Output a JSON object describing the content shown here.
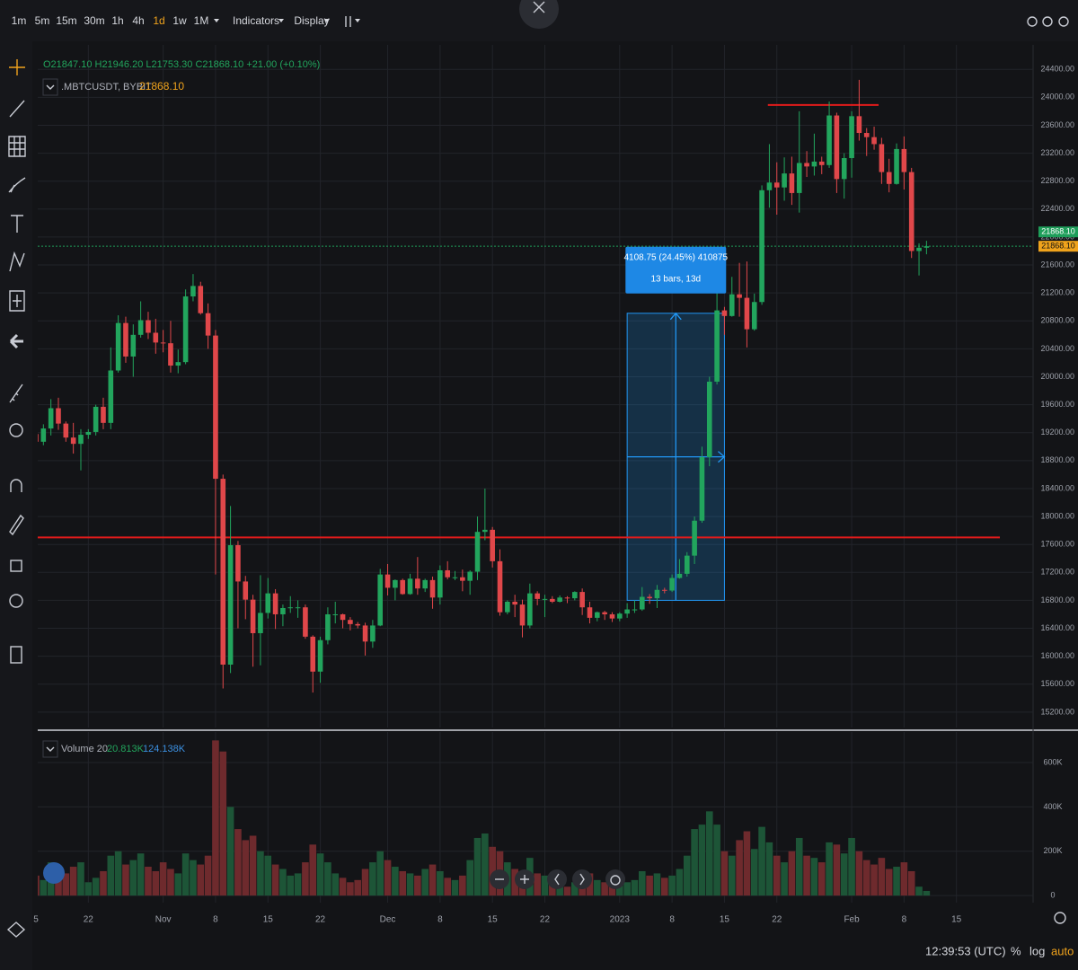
{
  "toolbar": {
    "intervals": [
      "1m",
      "5m",
      "15m",
      "30m",
      "1h",
      "4h",
      "1d",
      "1w",
      "1M"
    ],
    "active": "1d",
    "indicators": "Indicators",
    "display": "Display"
  },
  "chart_data": {
    "type": "candlestick",
    "symbol": ".MBTCUSDT, BYBIT",
    "last": "21868.10",
    "ohlc_header": [
      "O21847.10",
      "H21946.20",
      "L21753.30",
      "C21868.10",
      "+21.00 (+0.10%)"
    ],
    "xlim": [
      0,
      133
    ],
    "xticks": [
      {
        "value": 0,
        "label": "5"
      },
      {
        "value": 7,
        "label": "22"
      },
      {
        "value": 17,
        "label": "Nov"
      },
      {
        "value": 24,
        "label": "8"
      },
      {
        "value": 31,
        "label": "15"
      },
      {
        "value": 38,
        "label": "22"
      },
      {
        "value": 47,
        "label": "Dec"
      },
      {
        "value": 54,
        "label": "8"
      },
      {
        "value": 61,
        "label": "15"
      },
      {
        "value": 68,
        "label": "22"
      },
      {
        "value": 78,
        "label": "2023"
      },
      {
        "value": 85,
        "label": "8"
      },
      {
        "value": 92,
        "label": "15"
      },
      {
        "value": 99,
        "label": "22"
      },
      {
        "value": 109,
        "label": "Feb"
      },
      {
        "value": 116,
        "label": "8"
      },
      {
        "value": 123,
        "label": "15"
      }
    ],
    "ylim": [
      14980,
      24750
    ],
    "yticks": [
      {
        "value": 15200,
        "label": "15200.00"
      },
      {
        "value": 15600,
        "label": "15600.00"
      },
      {
        "value": 16000,
        "label": "16000.00"
      },
      {
        "value": 16400,
        "label": "16400.00"
      },
      {
        "value": 16800,
        "label": "16800.00"
      },
      {
        "value": 17200,
        "label": "17200.00"
      },
      {
        "value": 17600,
        "label": "17600.00"
      },
      {
        "value": 18000,
        "label": "18000.00"
      },
      {
        "value": 18400,
        "label": "18400.00"
      },
      {
        "value": 18800,
        "label": "18800.00"
      },
      {
        "value": 19200,
        "label": "19200.00"
      },
      {
        "value": 19600,
        "label": "19600.00"
      },
      {
        "value": 20000,
        "label": "20000.00"
      },
      {
        "value": 20400,
        "label": "20400.00"
      },
      {
        "value": 20800,
        "label": "20800.00"
      },
      {
        "value": 21200,
        "label": "21200.00"
      },
      {
        "value": 21600,
        "label": "21600.00"
      },
      {
        "value": 22000,
        "label": "22000.00"
      },
      {
        "value": 22400,
        "label": "22400.00"
      },
      {
        "value": 22800,
        "label": "22800.00"
      },
      {
        "value": 23200,
        "label": "23200.00"
      },
      {
        "value": 23600,
        "label": "23600.00"
      },
      {
        "value": 24000,
        "label": "24000.00"
      },
      {
        "value": 24400,
        "label": "24400.00"
      }
    ],
    "up_color": "#22a55d",
    "down_color": "#e0474a",
    "ohlc": [
      [
        19180,
        19230,
        18990,
        19070
      ],
      [
        19070,
        19320,
        19020,
        19260
      ],
      [
        19260,
        19680,
        19160,
        19550
      ],
      [
        19550,
        19700,
        19240,
        19330
      ],
      [
        19330,
        19360,
        19070,
        19130
      ],
      [
        19130,
        19340,
        18900,
        19040
      ],
      [
        19040,
        19250,
        18660,
        19170
      ],
      [
        19170,
        19250,
        19110,
        19210
      ],
      [
        19210,
        19600,
        19160,
        19570
      ],
      [
        19570,
        19700,
        19250,
        19340
      ],
      [
        19340,
        20420,
        19250,
        20090
      ],
      [
        20090,
        20880,
        20060,
        20770
      ],
      [
        20770,
        20860,
        20200,
        20290
      ],
      [
        20290,
        20750,
        20000,
        20600
      ],
      [
        20600,
        21080,
        20560,
        20810
      ],
      [
        20810,
        20930,
        20540,
        20630
      ],
      [
        20630,
        20830,
        20330,
        20490
      ],
      [
        20490,
        20670,
        20350,
        20480
      ],
      [
        20480,
        20800,
        20060,
        20160
      ],
      [
        20160,
        20390,
        20050,
        20210
      ],
      [
        20210,
        21250,
        20180,
        21150
      ],
      [
        21150,
        21470,
        21080,
        21300
      ],
      [
        21300,
        21360,
        20890,
        20910
      ],
      [
        20910,
        21050,
        20400,
        20590
      ],
      [
        20590,
        20670,
        17170,
        18540
      ],
      [
        18540,
        18600,
        15540,
        15880
      ],
      [
        15880,
        18150,
        15760,
        17590
      ],
      [
        17590,
        17650,
        16400,
        17070
      ],
      [
        17070,
        17150,
        16530,
        16810
      ],
      [
        16810,
        16880,
        15850,
        16330
      ],
      [
        16330,
        17160,
        15870,
        16620
      ],
      [
        16620,
        17120,
        16540,
        16900
      ],
      [
        16900,
        16960,
        16390,
        16600
      ],
      [
        16600,
        16740,
        16430,
        16690
      ],
      [
        16690,
        16860,
        16620,
        16700
      ],
      [
        16700,
        16800,
        16550,
        16700
      ],
      [
        16700,
        16740,
        16250,
        16280
      ],
      [
        16280,
        16300,
        15480,
        15780
      ],
      [
        15780,
        16280,
        15620,
        16230
      ],
      [
        16230,
        16700,
        16170,
        16600
      ],
      [
        16600,
        16780,
        16470,
        16600
      ],
      [
        16600,
        16610,
        16400,
        16520
      ],
      [
        16520,
        16560,
        16370,
        16460
      ],
      [
        16460,
        16490,
        16400,
        16440
      ],
      [
        16440,
        16480,
        16010,
        16210
      ],
      [
        16210,
        16520,
        16120,
        16440
      ],
      [
        16440,
        17250,
        16430,
        17170
      ],
      [
        17170,
        17320,
        16870,
        16980
      ],
      [
        16980,
        17100,
        16800,
        17090
      ],
      [
        17090,
        17110,
        16880,
        16890
      ],
      [
        16890,
        17180,
        16880,
        17110
      ],
      [
        17110,
        17420,
        16880,
        16970
      ],
      [
        16970,
        17110,
        16920,
        17090
      ],
      [
        17090,
        17140,
        16680,
        16840
      ],
      [
        16840,
        17300,
        16740,
        17230
      ],
      [
        17230,
        17360,
        17100,
        17130
      ],
      [
        17130,
        17220,
        17090,
        17130
      ],
      [
        17130,
        17240,
        16930,
        17080
      ],
      [
        17080,
        17230,
        16880,
        17210
      ],
      [
        17210,
        18000,
        17090,
        17780
      ],
      [
        17780,
        18400,
        17660,
        17810
      ],
      [
        17810,
        17850,
        17270,
        17360
      ],
      [
        17360,
        17530,
        16580,
        16630
      ],
      [
        16630,
        16800,
        16600,
        16780
      ],
      [
        16780,
        16880,
        16560,
        16740
      ],
      [
        16740,
        16810,
        16270,
        16440
      ],
      [
        16440,
        17040,
        16400,
        16900
      ],
      [
        16900,
        16930,
        16730,
        16820
      ],
      [
        16820,
        16880,
        16560,
        16820
      ],
      [
        16820,
        16860,
        16760,
        16780
      ],
      [
        16780,
        16870,
        16770,
        16840
      ],
      [
        16840,
        16860,
        16760,
        16830
      ],
      [
        16830,
        16930,
        16800,
        16920
      ],
      [
        16920,
        16970,
        16590,
        16700
      ],
      [
        16700,
        16780,
        16470,
        16550
      ],
      [
        16550,
        16640,
        16500,
        16630
      ],
      [
        16630,
        16650,
        16520,
        16600
      ],
      [
        16600,
        16630,
        16490,
        16540
      ],
      [
        16540,
        16630,
        16500,
        16610
      ],
      [
        16610,
        16760,
        16550,
        16670
      ],
      [
        16670,
        16800,
        16620,
        16670
      ],
      [
        16670,
        16990,
        16650,
        16850
      ],
      [
        16850,
        16890,
        16750,
        16830
      ],
      [
        16830,
        17020,
        16690,
        16950
      ],
      [
        16950,
        16980,
        16900,
        16940
      ],
      [
        16940,
        17170,
        16920,
        17120
      ],
      [
        17120,
        17390,
        17110,
        17180
      ],
      [
        17180,
        17490,
        17140,
        17440
      ],
      [
        17440,
        18000,
        17320,
        17940
      ],
      [
        17940,
        19000,
        17910,
        18850
      ],
      [
        18850,
        20000,
        18720,
        19930
      ],
      [
        19930,
        21250,
        19890,
        20950
      ],
      [
        20950,
        21000,
        20600,
        20870
      ],
      [
        20870,
        21430,
        20860,
        21180
      ],
      [
        21180,
        21630,
        20860,
        21130
      ],
      [
        21130,
        21650,
        20420,
        20680
      ],
      [
        20680,
        21190,
        20660,
        21070
      ],
      [
        21070,
        22740,
        21030,
        22670
      ],
      [
        22670,
        23330,
        22420,
        22780
      ],
      [
        22780,
        23070,
        22320,
        22710
      ],
      [
        22710,
        23140,
        22520,
        22910
      ],
      [
        22910,
        23150,
        22460,
        22630
      ],
      [
        22630,
        23800,
        22350,
        23060
      ],
      [
        23060,
        23230,
        22860,
        23010
      ],
      [
        23010,
        23480,
        22880,
        23080
      ],
      [
        23080,
        23150,
        22900,
        23030
      ],
      [
        23030,
        23940,
        22990,
        23740
      ],
      [
        23740,
        23780,
        22630,
        22830
      ],
      [
        22830,
        23200,
        22550,
        23130
      ],
      [
        23130,
        23800,
        22850,
        23730
      ],
      [
        23730,
        24250,
        23380,
        23490
      ],
      [
        23490,
        23560,
        23160,
        23430
      ],
      [
        23430,
        23580,
        23250,
        23330
      ],
      [
        23330,
        23420,
        22760,
        22930
      ],
      [
        22930,
        23120,
        22640,
        22760
      ],
      [
        22760,
        23340,
        22750,
        23260
      ],
      [
        23260,
        23440,
        22680,
        22930
      ],
      [
        22930,
        22990,
        21700,
        21800
      ],
      [
        21800,
        21910,
        21450,
        21847.1
      ],
      [
        21847.1,
        21946.2,
        21753.3,
        21868.1
      ]
    ],
    "hlines": [
      {
        "value": 17700,
        "from": 0,
        "to": 128.8,
        "color": "#e21b1b"
      },
      {
        "value": 23890,
        "from": 97.8,
        "to": 112.6,
        "color": "#e21b1b"
      }
    ],
    "last_line": {
      "value": 21868.1,
      "color": "#1e9e5a"
    },
    "price_tags": [
      {
        "value": 21868.1,
        "label": "21868.10",
        "color": "#1e9e5a"
      },
      {
        "value": 21868.1,
        "label": "21868.10",
        "color": "#f0a31c"
      }
    ],
    "measure": {
      "x0": 79,
      "x1": 92,
      "from": 16800,
      "to": 20908.75,
      "label": "4108.75 (24.45%) 410875",
      "sublabel": "13 bars, 13d"
    },
    "volume": {
      "legend": [
        "Volume 20",
        "20.813K",
        "124.138K"
      ],
      "vylim": [
        -32,
        738
      ],
      "vticks": [
        0,
        {
          "value": 200,
          "label": "200K"
        },
        {
          "value": 400,
          "label": "400K"
        },
        {
          "value": 600,
          "label": "600K"
        }
      ],
      "values": [
        90,
        70,
        150,
        120,
        100,
        130,
        150,
        60,
        80,
        110,
        180,
        200,
        140,
        160,
        190,
        130,
        110,
        150,
        120,
        100,
        190,
        160,
        140,
        180,
        700,
        650,
        400,
        300,
        250,
        270,
        200,
        180,
        140,
        120,
        90,
        100,
        150,
        230,
        190,
        150,
        100,
        80,
        60,
        70,
        120,
        150,
        200,
        160,
        130,
        110,
        100,
        90,
        120,
        140,
        110,
        80,
        70,
        90,
        160,
        260,
        280,
        220,
        200,
        150,
        120,
        110,
        170,
        100,
        90,
        60,
        50,
        40,
        60,
        80,
        100,
        70,
        60,
        70,
        50,
        60,
        70,
        110,
        90,
        100,
        80,
        90,
        120,
        180,
        300,
        320,
        380,
        320,
        200,
        180,
        250,
        290,
        210,
        310,
        240,
        180,
        150,
        200,
        260,
        180,
        170,
        150,
        240,
        230,
        190,
        260,
        200,
        160,
        140,
        170,
        120,
        130,
        150,
        110,
        40,
        20.813
      ]
    }
  },
  "status": {
    "time": "12:39:53 (UTC)",
    "percent": "%",
    "log": "log",
    "auto": "auto"
  }
}
